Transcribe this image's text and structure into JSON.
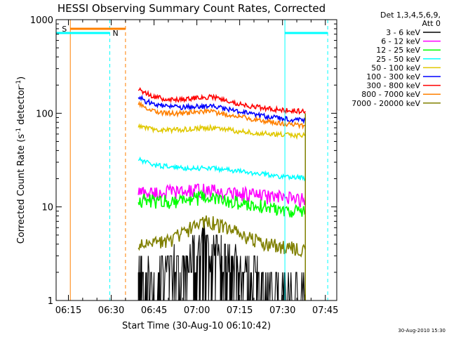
{
  "chart_data": {
    "type": "line",
    "title": "HESSI Observing Summary Count Rates, Corrected",
    "xlabel": "Start Time (30-Aug-10 06:10:42)",
    "ylabel": "Corrected Count Rate (s",
    "ylabel_sup1": "-1",
    "ylabel_mid": " detector",
    "ylabel_sup2": "-1",
    "ylabel_end": ")",
    "yscale": "log",
    "xlim": [
      "06:10:42",
      "07:49:00"
    ],
    "ylim": [
      1,
      1000
    ],
    "x_ticks": [
      "06:15",
      "06:30",
      "06:45",
      "07:00",
      "07:15",
      "07:30",
      "07:45"
    ],
    "y_ticks": [
      "1",
      "10",
      "100",
      "1000"
    ],
    "legend_title_line1": "Det 1,3,4,5,6,9,",
    "legend_title_line2": "Att 0",
    "legend_position": "right",
    "footer": "30-Aug-2010 15:30",
    "series": [
      {
        "name": "3 - 6 keV",
        "color": "#000000",
        "x": [
          "06:39:30",
          "06:45",
          "06:50",
          "06:55",
          "07:00",
          "07:02",
          "07:05",
          "07:10",
          "07:15",
          "07:20",
          "07:25",
          "07:30",
          "07:35",
          "07:38:00"
        ],
        "y": [
          2.0,
          2.0,
          2.2,
          2.5,
          3.5,
          5.5,
          4.0,
          3.0,
          2.5,
          2.0,
          1.6,
          1.4,
          1.3,
          1.2
        ]
      },
      {
        "name": "6 - 12 keV",
        "color": "#ff00ff",
        "x": [
          "06:39:30",
          "06:45",
          "06:50",
          "06:55",
          "07:00",
          "07:05",
          "07:10",
          "07:15",
          "07:20",
          "07:25",
          "07:30",
          "07:35",
          "07:38:00"
        ],
        "y": [
          14.5,
          14,
          14.5,
          14.5,
          15,
          15,
          14,
          14,
          13.5,
          13,
          12.5,
          12,
          12
        ]
      },
      {
        "name": "12 - 25 keV",
        "color": "#00ff00",
        "x": [
          "06:39:30",
          "06:45",
          "06:50",
          "06:55",
          "07:00",
          "07:05",
          "07:10",
          "07:15",
          "07:20",
          "07:25",
          "07:30",
          "07:35",
          "07:38:00"
        ],
        "y": [
          12,
          11.5,
          11.5,
          12,
          12.5,
          12.5,
          11.5,
          11,
          10.5,
          10,
          9.5,
          9,
          9
        ]
      },
      {
        "name": "25 - 50 keV",
        "color": "#00ffff",
        "x": [
          "06:39:30",
          "06:42",
          "06:45",
          "06:50",
          "06:55",
          "07:00",
          "07:05",
          "07:10",
          "07:15",
          "07:20",
          "07:25",
          "07:30",
          "07:35",
          "07:38:00"
        ],
        "y": [
          32,
          30,
          28,
          27,
          26,
          26,
          26,
          25,
          24,
          23,
          22,
          21,
          21,
          20
        ]
      },
      {
        "name": "50 - 100 keV",
        "color": "#e0c800",
        "x": [
          "06:39:30",
          "06:42",
          "06:45",
          "06:50",
          "06:55",
          "07:00",
          "07:05",
          "07:10",
          "07:15",
          "07:20",
          "07:25",
          "07:30",
          "07:35",
          "07:38:00"
        ],
        "y": [
          72,
          70,
          67,
          66,
          67,
          69,
          70,
          67,
          64,
          62,
          60,
          59,
          58,
          58
        ]
      },
      {
        "name": "100 - 300 keV",
        "color": "#0000ff",
        "x": [
          "06:39:30",
          "06:42",
          "06:45",
          "06:50",
          "06:55",
          "07:00",
          "07:05",
          "07:10",
          "07:15",
          "07:20",
          "07:25",
          "07:30",
          "07:35",
          "07:38:00"
        ],
        "y": [
          150,
          135,
          125,
          118,
          115,
          118,
          120,
          112,
          104,
          97,
          92,
          88,
          85,
          84
        ]
      },
      {
        "name": "300 - 800 keV",
        "color": "#ff0000",
        "x": [
          "06:39:30",
          "06:42",
          "06:45",
          "06:50",
          "06:55",
          "07:00",
          "07:05",
          "07:10",
          "07:15",
          "07:20",
          "07:25",
          "07:30",
          "07:35",
          "07:38:00"
        ],
        "y": [
          178,
          165,
          150,
          140,
          140,
          148,
          150,
          138,
          125,
          118,
          112,
          108,
          106,
          105
        ]
      },
      {
        "name": "800 - 7000 keV",
        "color": "#ff8000",
        "x": [
          "06:39:30",
          "06:42",
          "06:45",
          "06:50",
          "06:55",
          "07:00",
          "07:05",
          "07:10",
          "07:15",
          "07:20",
          "07:25",
          "07:30",
          "07:35",
          "07:38:00"
        ],
        "y": [
          125,
          115,
          105,
          100,
          100,
          103,
          104,
          98,
          92,
          86,
          82,
          78,
          75,
          74
        ]
      },
      {
        "name": "7000 - 20000 keV",
        "color": "#808000",
        "x": [
          "06:39:30",
          "06:45",
          "06:50",
          "06:55",
          "07:00",
          "07:03",
          "07:06",
          "07:10",
          "07:15",
          "07:20",
          "07:25",
          "07:30",
          "07:35",
          "07:38:00"
        ],
        "y": [
          3.8,
          4.0,
          4.3,
          5.2,
          6.5,
          7.2,
          6.8,
          6.0,
          5.2,
          4.5,
          4.0,
          3.7,
          3.6,
          3.5
        ]
      }
    ],
    "annotations": [
      {
        "label": "S",
        "color": "#ff8000"
      },
      {
        "label": "N",
        "color": "#00ffff"
      }
    ]
  }
}
